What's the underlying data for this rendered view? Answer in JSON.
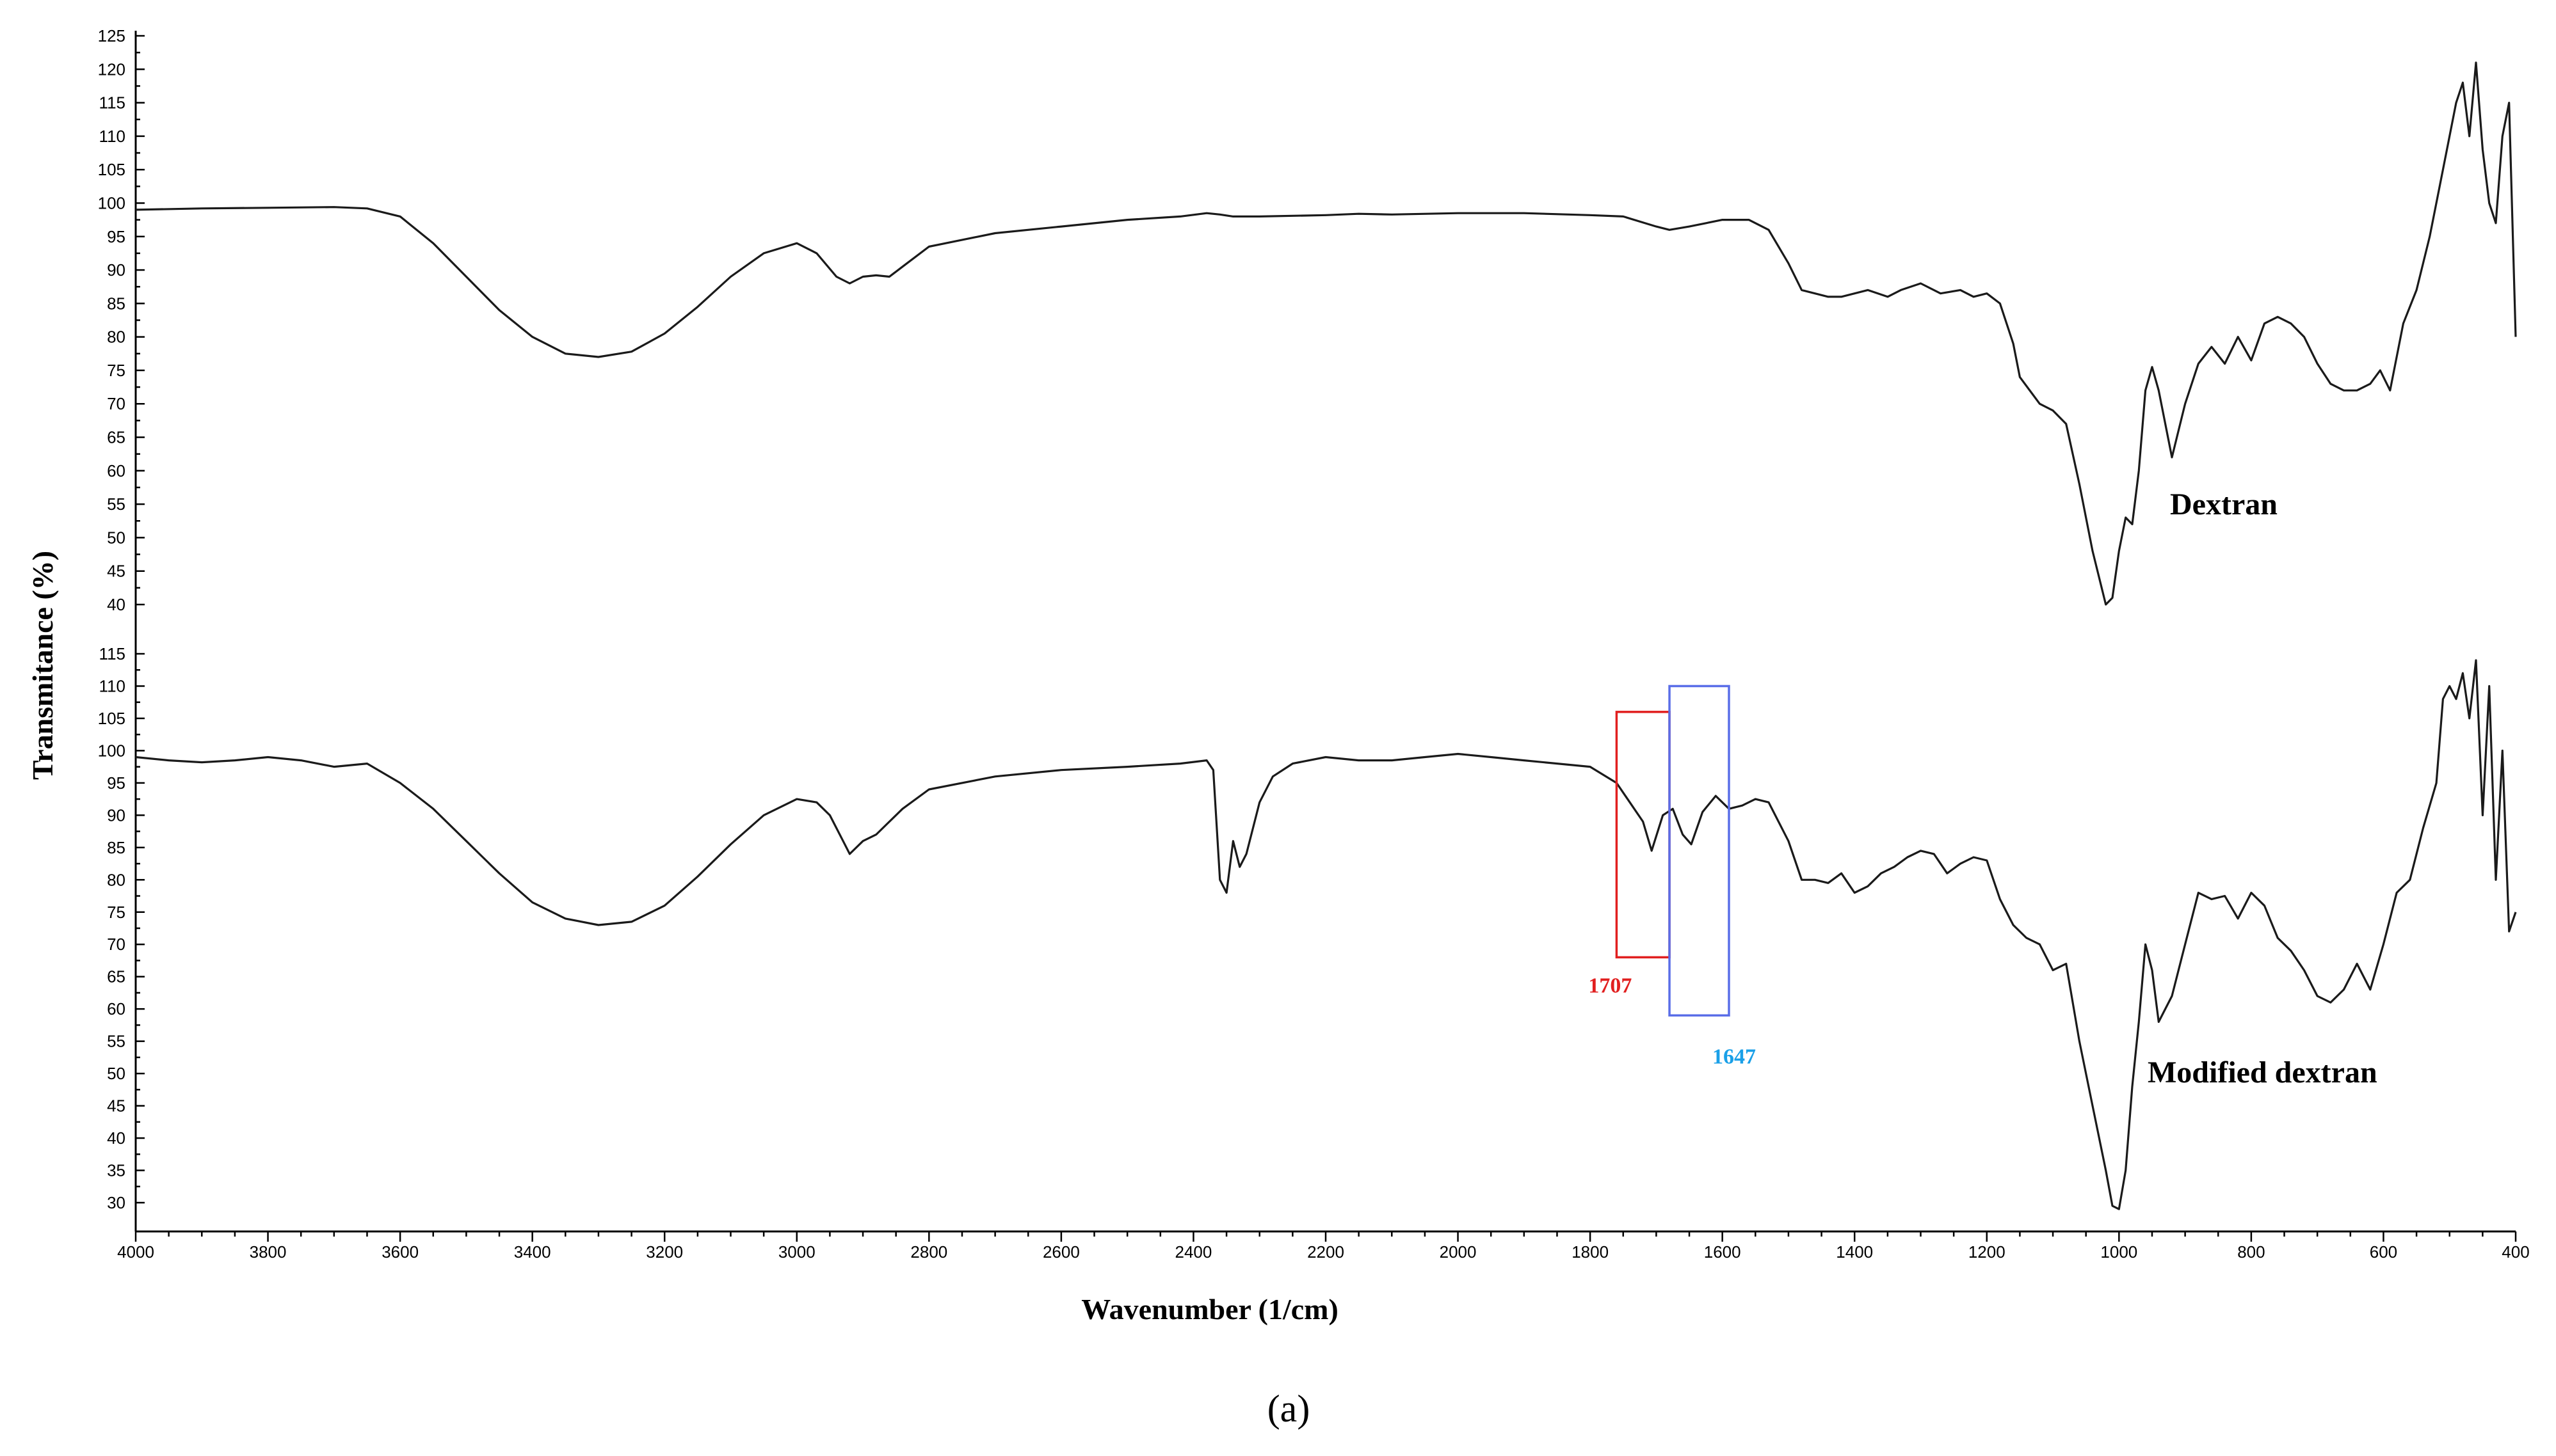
{
  "chart_data": {
    "type": "line",
    "xlabel": "Wavenumber (1/cm)",
    "ylabel": "Transmitance (%)",
    "xlim": [
      4000,
      400
    ],
    "x_ticks": [
      4000,
      3800,
      3600,
      3400,
      3200,
      3000,
      2800,
      2600,
      2400,
      2200,
      2000,
      1800,
      1600,
      1400,
      1200,
      1000,
      800,
      600,
      400
    ],
    "panels": [
      {
        "series_name": "Dextran",
        "ylim": [
          37,
          125
        ],
        "y_ticks": [
          40,
          45,
          50,
          55,
          60,
          65,
          70,
          75,
          80,
          85,
          90,
          95,
          100,
          105,
          110,
          115,
          120,
          125
        ],
        "x": [
          4000,
          3900,
          3800,
          3700,
          3650,
          3600,
          3550,
          3500,
          3450,
          3400,
          3350,
          3300,
          3250,
          3200,
          3150,
          3100,
          3050,
          3000,
          2970,
          2940,
          2920,
          2900,
          2880,
          2860,
          2840,
          2800,
          2700,
          2600,
          2500,
          2420,
          2380,
          2360,
          2340,
          2300,
          2200,
          2150,
          2100,
          2000,
          1900,
          1800,
          1750,
          1700,
          1680,
          1650,
          1600,
          1560,
          1530,
          1500,
          1480,
          1460,
          1440,
          1420,
          1380,
          1350,
          1330,
          1300,
          1270,
          1240,
          1220,
          1200,
          1180,
          1160,
          1150,
          1120,
          1100,
          1080,
          1060,
          1040,
          1020,
          1010,
          1000,
          990,
          980,
          970,
          960,
          950,
          940,
          920,
          900,
          880,
          860,
          840,
          820,
          800,
          780,
          760,
          740,
          720,
          700,
          680,
          660,
          640,
          620,
          605,
          590,
          570,
          550,
          530,
          510,
          500,
          490,
          480,
          470,
          460,
          450,
          440,
          430,
          420,
          410,
          400
        ],
        "y": [
          99,
          99.2,
          99.3,
          99.4,
          99.2,
          98,
          94,
          89,
          84,
          80,
          77.5,
          77,
          77.8,
          80.5,
          84.5,
          89,
          92.5,
          94,
          92.5,
          89,
          88,
          89,
          89.2,
          89,
          90.5,
          93.5,
          95.5,
          96.5,
          97.5,
          98,
          98.5,
          98.3,
          98,
          98,
          98.2,
          98.4,
          98.3,
          98.5,
          98.5,
          98.2,
          98,
          96.5,
          96,
          96.5,
          97.5,
          97.5,
          96,
          91,
          87,
          86.5,
          86,
          86,
          87,
          86,
          87,
          88,
          86.5,
          87,
          86,
          86.5,
          85,
          79,
          74,
          70,
          69,
          67,
          58,
          48,
          40,
          41,
          48,
          53,
          52,
          60,
          72,
          75.5,
          72,
          62,
          70,
          76,
          78.5,
          76,
          80,
          76.5,
          82,
          83,
          82,
          80,
          76,
          73,
          72,
          72,
          73,
          75,
          72,
          82,
          87,
          95,
          105,
          110,
          115,
          118,
          110,
          121,
          108,
          100,
          97,
          110,
          115,
          80
        ],
        "label": "Dextran"
      },
      {
        "series_name": "Modified dextran",
        "ylim": [
          27,
          117
        ],
        "y_ticks": [
          30,
          35,
          40,
          45,
          50,
          55,
          60,
          65,
          70,
          75,
          80,
          85,
          90,
          95,
          100,
          105,
          110,
          115
        ],
        "x": [
          4000,
          3950,
          3900,
          3850,
          3800,
          3750,
          3700,
          3650,
          3600,
          3550,
          3500,
          3450,
          3400,
          3350,
          3300,
          3250,
          3200,
          3150,
          3100,
          3050,
          3000,
          2970,
          2950,
          2930,
          2920,
          2900,
          2880,
          2860,
          2840,
          2800,
          2700,
          2600,
          2500,
          2420,
          2380,
          2370,
          2360,
          2350,
          2340,
          2330,
          2320,
          2300,
          2280,
          2250,
          2200,
          2150,
          2100,
          2050,
          2000,
          1950,
          1900,
          1850,
          1800,
          1760,
          1740,
          1720,
          1707,
          1690,
          1675,
          1660,
          1647,
          1630,
          1610,
          1590,
          1570,
          1550,
          1530,
          1500,
          1480,
          1460,
          1440,
          1420,
          1400,
          1380,
          1360,
          1340,
          1320,
          1300,
          1280,
          1260,
          1240,
          1220,
          1200,
          1180,
          1160,
          1140,
          1120,
          1100,
          1080,
          1060,
          1040,
          1020,
          1010,
          1000,
          990,
          980,
          970,
          960,
          950,
          940,
          920,
          900,
          880,
          860,
          840,
          820,
          800,
          780,
          760,
          740,
          720,
          700,
          680,
          660,
          640,
          620,
          600,
          580,
          560,
          540,
          520,
          510,
          500,
          490,
          480,
          470,
          460,
          450,
          440,
          430,
          420,
          410,
          400
        ],
        "y": [
          99,
          98.5,
          98.2,
          98.5,
          99,
          98.5,
          97.5,
          98,
          95,
          91,
          86,
          81,
          76.5,
          74,
          73,
          73.5,
          76,
          80.5,
          85.5,
          90,
          92.5,
          92,
          90,
          86,
          84,
          86,
          87,
          89,
          91,
          94,
          96,
          97,
          97.5,
          98,
          98.5,
          97,
          80,
          78,
          86,
          82,
          84,
          92,
          96,
          98,
          99,
          98.5,
          98.5,
          99,
          99.5,
          99,
          98.5,
          98,
          97.5,
          95,
          92,
          89,
          84.5,
          90,
          91,
          87,
          85.5,
          90.5,
          93,
          91,
          91.5,
          92.5,
          92,
          86,
          80,
          80,
          79.5,
          81,
          78,
          79,
          81,
          82,
          83.5,
          84.5,
          84,
          81,
          82.5,
          83.5,
          83,
          77,
          73,
          71,
          70,
          66,
          67,
          55,
          45,
          35,
          29.5,
          29,
          35,
          48,
          58,
          70,
          66,
          58,
          62,
          70,
          78,
          77,
          77.5,
          74,
          78,
          76,
          71,
          69,
          66,
          62,
          61,
          63,
          67,
          63,
          70,
          78,
          80,
          88,
          95,
          108,
          110,
          108,
          112,
          105,
          114,
          90,
          110,
          80,
          100,
          72,
          75
        ],
        "label": "Modified dextran"
      }
    ],
    "annotations": [
      {
        "text": "1707",
        "color": "#e11f1f",
        "x_from": 1760,
        "x_to": 1680,
        "y_from": 68,
        "y_to": 106
      },
      {
        "text": "1647",
        "color": "#5a6ee8",
        "x_from": 1680,
        "x_to": 1590,
        "y_from": 59,
        "y_to": 110
      }
    ],
    "annotation_text_colors": {
      "1707": "#e11f1f",
      "1647": "#1aa0e8"
    }
  },
  "figure": {
    "panel_label": "(a)"
  }
}
